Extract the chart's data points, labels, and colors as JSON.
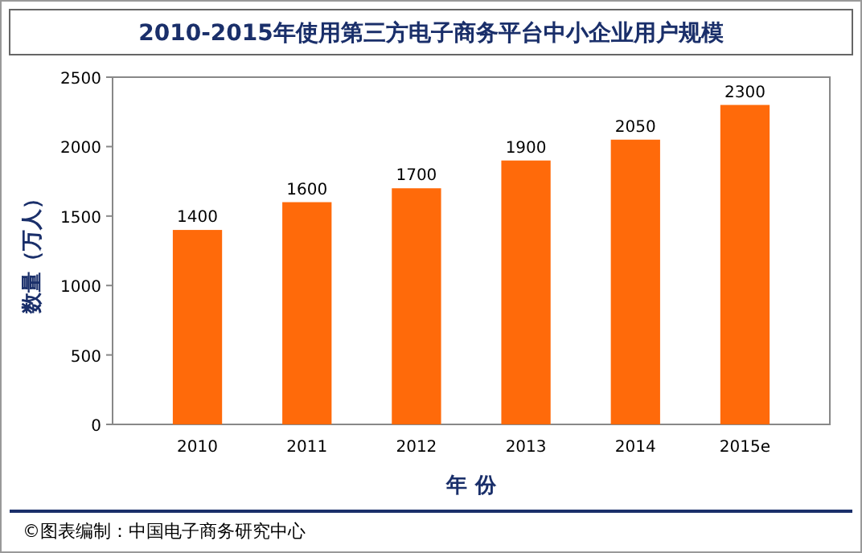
{
  "chart_data": {
    "type": "bar",
    "title": "2010-2015年使用第三方电子商务平台中小企业用户规模",
    "categories": [
      "2010",
      "2011",
      "2012",
      "2013",
      "2014",
      "2015e"
    ],
    "values": [
      1400,
      1600,
      1700,
      1900,
      2050,
      2300
    ],
    "color": "#ff6a0a",
    "ylim": [
      0,
      2500
    ],
    "yticks": [
      0,
      500,
      1000,
      1500,
      2000,
      2500
    ],
    "grid": false,
    "data_labels": true,
    "xlabel": "年 份",
    "ylabel": "数量（万人）",
    "annotations": [
      "©图表编制：中国电子商务研究中心"
    ]
  }
}
